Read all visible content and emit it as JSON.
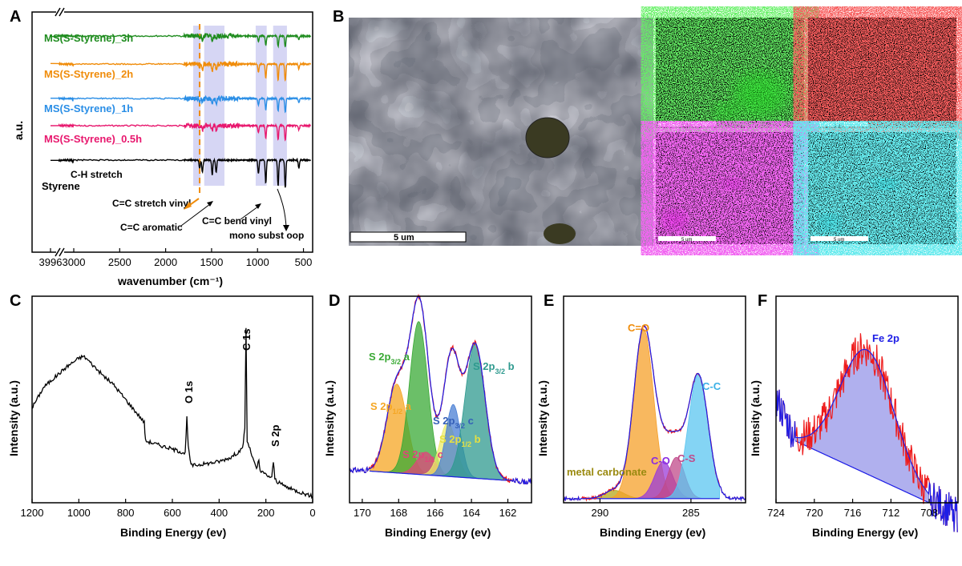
{
  "panel_letters": [
    "A",
    "B",
    "C",
    "D",
    "E",
    "F"
  ],
  "chart_data": [
    {
      "panel": "A",
      "type": "line",
      "xlabel": "wavenumber (cm⁻¹)",
      "ylabel": "a.u.",
      "xlim": [
        3996,
        400
      ],
      "xticks": [
        3996,
        3000,
        2500,
        2000,
        1500,
        1000,
        500
      ],
      "axis_break": "between 3996 and 3000",
      "grid": false,
      "series": [
        {
          "name": "MS(S-Styrene)_3h",
          "color": "#1f8c1f"
        },
        {
          "name": "MS(S-Styrene)_2h",
          "color": "#f08c0a"
        },
        {
          "name": "MS(S-Styrene)_1h",
          "color": "#2a8ee6"
        },
        {
          "name": "MS(S-Styrene)_0.5h",
          "color": "#e8186e"
        },
        {
          "name": "Styrene",
          "color": "#000000"
        }
      ],
      "peaks": [
        {
          "x": 3060,
          "depth": 0.08
        },
        {
          "x": 1630,
          "depth": 0.3
        },
        {
          "x": 1600,
          "depth": 0.45
        },
        {
          "x": 1493,
          "depth": 0.55
        },
        {
          "x": 1450,
          "depth": 0.45
        },
        {
          "x": 990,
          "depth": 0.5
        },
        {
          "x": 910,
          "depth": 0.85
        },
        {
          "x": 776,
          "depth": 0.95
        },
        {
          "x": 698,
          "depth": 1.0
        },
        {
          "x": 550,
          "depth": 0.3
        }
      ],
      "bands": [
        {
          "from": 1700,
          "to": 1620
        },
        {
          "from": 1580,
          "to": 1360
        },
        {
          "from": 1020,
          "to": 900
        },
        {
          "from": 830,
          "to": 680
        }
      ],
      "vinyl_line_x": 1630,
      "annotations": [
        {
          "text": "C-H stretch"
        },
        {
          "text": "C=C stretch vinyl"
        },
        {
          "text": "C=C aromatic"
        },
        {
          "text": "C=C bend vinyl"
        },
        {
          "text": "mono subst oop"
        }
      ]
    },
    {
      "panel": "B",
      "type": "image",
      "scale_bars": [
        "5 um",
        "5 um",
        "5 um",
        "5 um",
        "5 um"
      ],
      "map_colors": [
        "#22dd22",
        "#ee1c1c",
        "#e020e0",
        "#20d0d8"
      ]
    },
    {
      "panel": "C",
      "type": "line",
      "xlabel": "Binding Energy (ev)",
      "ylabel": "Intensity (a.u.)",
      "xlim": [
        1200,
        0
      ],
      "xticks": [
        1200,
        1000,
        800,
        600,
        400,
        200,
        0
      ],
      "series": [
        {
          "name": "",
          "color": "#000000",
          "x": [
            1200,
            1150,
            1100,
            1050,
            1000,
            980,
            960,
            900,
            850,
            800,
            720,
            715,
            600,
            545,
            538,
            532,
            520,
            450,
            400,
            350,
            300,
            290,
            285,
            280,
            240,
            230,
            225,
            220,
            175,
            168,
            162,
            150,
            100,
            50,
            0
          ],
          "y": [
            0.46,
            0.56,
            0.61,
            0.66,
            0.7,
            0.71,
            0.69,
            0.62,
            0.57,
            0.5,
            0.39,
            0.3,
            0.26,
            0.24,
            0.41,
            0.27,
            0.18,
            0.19,
            0.2,
            0.22,
            0.26,
            0.36,
            0.84,
            0.3,
            0.16,
            0.21,
            0.15,
            0.15,
            0.12,
            0.2,
            0.12,
            0.1,
            0.07,
            0.05,
            0.03
          ]
        }
      ],
      "annotations": [
        {
          "text": "O 1s"
        },
        {
          "text": "C 1s"
        },
        {
          "text": "S 2p"
        }
      ]
    },
    {
      "panel": "D",
      "type": "area",
      "xlabel": "Binding Energy (ev)",
      "ylabel": "Intensity (a.u.)",
      "xlim": [
        170.7,
        160.7
      ],
      "xticks": [
        170,
        168,
        166,
        164,
        162
      ],
      "components": [
        {
          "center": 168.1,
          "height": 0.43,
          "width": 0.55,
          "color": "#f5a623"
        },
        {
          "center": 166.9,
          "height": 0.74,
          "width": 0.5,
          "color": "#3aa935"
        },
        {
          "center": 166.5,
          "height": 0.11,
          "width": 0.5,
          "color": "#e0457b"
        },
        {
          "center": 165.3,
          "height": 0.26,
          "width": 0.45,
          "color": "#ecec6a"
        },
        {
          "center": 165.0,
          "height": 0.35,
          "width": 0.4,
          "color": "#4a7fd4"
        },
        {
          "center": 163.8,
          "height": 0.65,
          "width": 0.55,
          "color": "#2f9a8f"
        }
      ],
      "labels": [
        "S 2p3/2 a",
        "S 2p1/2 a",
        "S 2p3/2 b",
        "S 2p3/2 c",
        "S 2p1/2 b",
        "S 2p1/2 c"
      ]
    },
    {
      "panel": "E",
      "type": "area",
      "xlabel": "Binding Energy (ev)",
      "ylabel": "Intensity (a.u.)",
      "xlim": [
        292,
        282
      ],
      "xticks": [
        290,
        285
      ],
      "components": [
        {
          "center": 289.2,
          "height": 0.04,
          "width": 0.55,
          "color": "#b5a81a"
        },
        {
          "center": 287.6,
          "height": 0.82,
          "width": 0.55,
          "color": "#f5a02a"
        },
        {
          "center": 286.5,
          "height": 0.18,
          "width": 0.5,
          "color": "#9b3bd8"
        },
        {
          "center": 285.8,
          "height": 0.2,
          "width": 0.45,
          "color": "#c04a8a"
        },
        {
          "center": 284.6,
          "height": 0.6,
          "width": 0.55,
          "color": "#5bc6f0"
        }
      ],
      "labels": [
        "C=O",
        "C-C",
        "C-O",
        "C-S",
        "metal carbonate"
      ]
    },
    {
      "panel": "F",
      "type": "area",
      "xlabel": "Binding Energy (ev)",
      "ylabel": "Intensity (a.u.)",
      "xlim": [
        724,
        705
      ],
      "xticks": [
        724,
        720,
        716,
        712,
        708
      ],
      "components": [
        {
          "center": 714.5,
          "height": 0.6,
          "width": 2.8,
          "color": "#7070e0"
        }
      ],
      "labels": [
        "Fe 2p"
      ]
    }
  ]
}
